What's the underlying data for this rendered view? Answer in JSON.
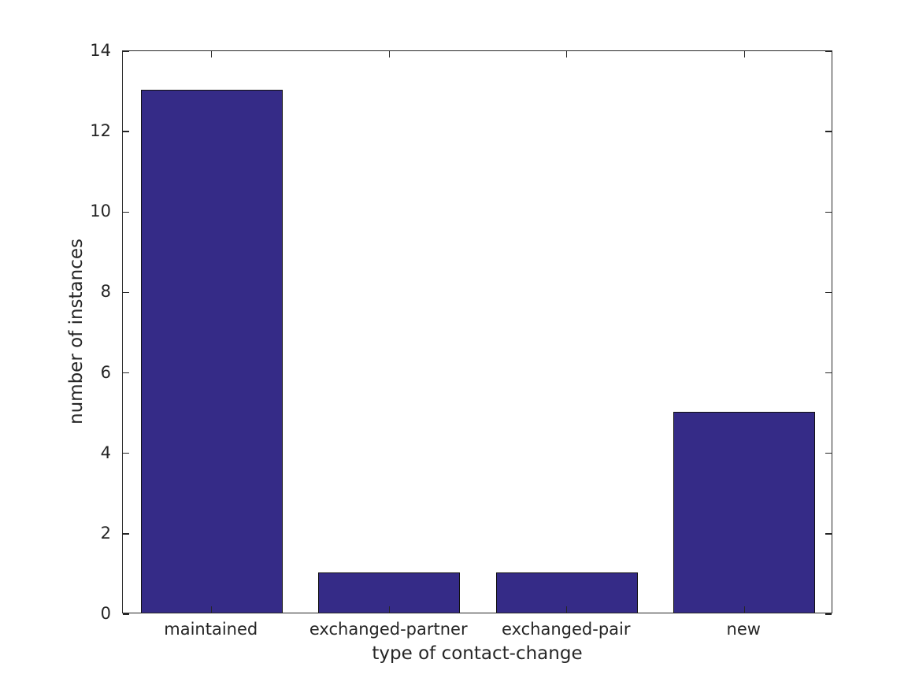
{
  "chart_data": {
    "type": "bar",
    "title": "",
    "categories": [
      "maintained",
      "exchanged-partner",
      "exchanged-pair",
      "new"
    ],
    "values": [
      13,
      1,
      1,
      5
    ],
    "xlabel": "type of contact-change",
    "ylabel": "number of instances",
    "ylim": [
      0,
      14
    ],
    "yticks": [
      0,
      2,
      4,
      6,
      8,
      10,
      12,
      14
    ],
    "ytick_labels": [
      "0",
      "2",
      "4",
      "6",
      "8",
      "10",
      "12",
      "14"
    ],
    "bar_width_fraction": 0.8,
    "grid": false,
    "legend": null,
    "tick_direction": "in",
    "colors": {
      "bar_fill": "#352B87",
      "bar_edge": "#111111",
      "axis": "#262626",
      "text": "#262626",
      "background": "#FFFFFF"
    }
  }
}
